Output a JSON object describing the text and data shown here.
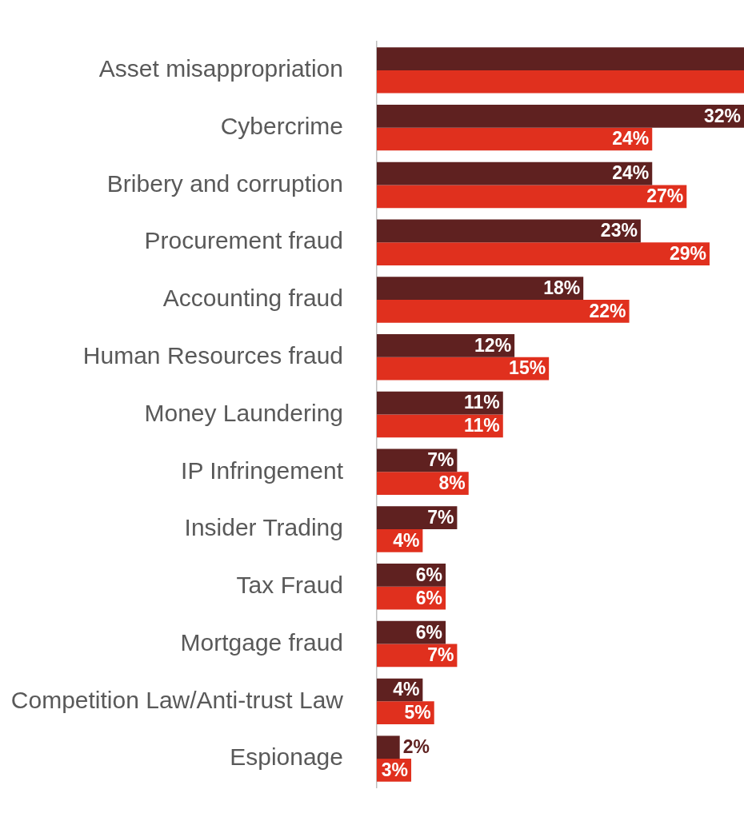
{
  "chart_data": {
    "type": "bar",
    "orientation": "horizontal",
    "categories": [
      "Asset misappropriation",
      "Cybercrime",
      "Bribery and corruption",
      "Procurement fraud",
      "Accounting fraud",
      "Human Resources fraud",
      "Money Laundering",
      "IP Infringement",
      "Insider Trading",
      "Tax Fraud",
      "Mortgage fraud",
      "Competition Law/Anti-trust Law",
      "Espionage"
    ],
    "series": [
      {
        "color": "#5f2120",
        "values": [
          32,
          32,
          24,
          23,
          18,
          12,
          11,
          7,
          7,
          6,
          6,
          4,
          2
        ],
        "value_labels": [
          null,
          "32%",
          "24%",
          "23%",
          "18%",
          "12%",
          "11%",
          "7%",
          "7%",
          "6%",
          "6%",
          "4%",
          "2%"
        ]
      },
      {
        "color": "#e0301e",
        "values": [
          32,
          24,
          27,
          29,
          22,
          15,
          11,
          8,
          4,
          6,
          7,
          5,
          3
        ],
        "value_labels": [
          null,
          "24%",
          "27%",
          "29%",
          "22%",
          "15%",
          "11%",
          "8%",
          "4%",
          "6%",
          "7%",
          "5%",
          "3%"
        ]
      }
    ],
    "xlim": [
      0,
      32
    ],
    "tick_labels": "y",
    "grid": false,
    "legend": false
  }
}
